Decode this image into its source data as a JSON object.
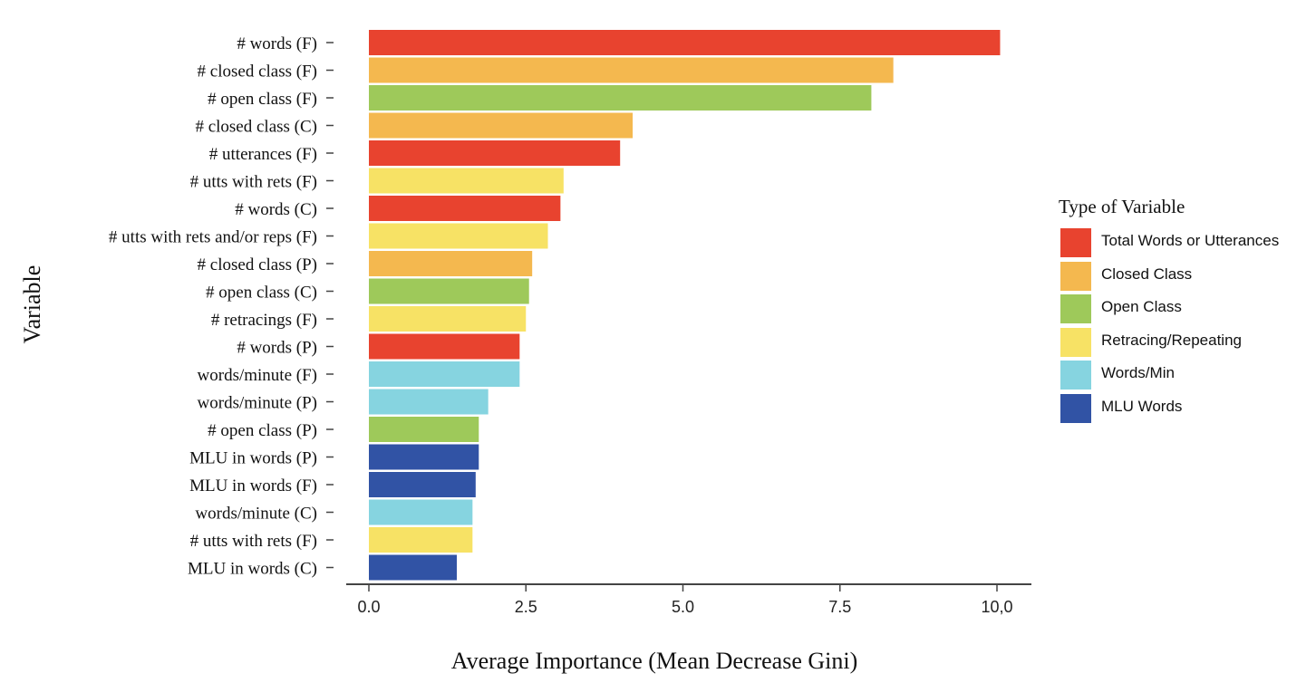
{
  "chart_data": {
    "type": "bar",
    "orientation": "horizontal",
    "xlabel": "Average Importance (Mean Decrease Gini)",
    "ylabel": "Variable",
    "xlim": [
      -0.2,
      10.3
    ],
    "xticks": [
      0.0,
      2.5,
      5.0,
      7.5,
      10.0
    ],
    "xtick_labels": [
      "0.0",
      "2.5",
      "5.0",
      "7.5",
      "10,0"
    ],
    "grid": false,
    "legend": {
      "title": "Type of Variable",
      "position": "right",
      "entries": [
        {
          "label": "Total Words or Utterances",
          "color": "#e8432f"
        },
        {
          "label": "Closed Class",
          "color": "#f4b84f"
        },
        {
          "label": "Open Class",
          "color": "#9ec95a"
        },
        {
          "label": "Retracing/Repeating",
          "color": "#f7e265"
        },
        {
          "label": "Words/Min",
          "color": "#86d4e0"
        },
        {
          "label": "MLU Words",
          "color": "#3153a5"
        }
      ]
    },
    "bars": [
      {
        "label": "# words (F)",
        "value": 10.05,
        "type": 0
      },
      {
        "label": "# closed class (F)",
        "value": 8.35,
        "type": 1
      },
      {
        "label": "# open class (F)",
        "value": 8.0,
        "type": 2
      },
      {
        "label": "# closed class (C)",
        "value": 4.2,
        "type": 1
      },
      {
        "label": "# utterances (F)",
        "value": 4.0,
        "type": 0
      },
      {
        "label": "# utts with rets (F)",
        "value": 3.1,
        "type": 3
      },
      {
        "label": "# words (C)",
        "value": 3.05,
        "type": 0
      },
      {
        "label": "# utts with rets and/or reps (F)",
        "value": 2.85,
        "type": 3
      },
      {
        "label": "# closed class (P)",
        "value": 2.6,
        "type": 1
      },
      {
        "label": "# open class (C)",
        "value": 2.55,
        "type": 2
      },
      {
        "label": "# retracings (F)",
        "value": 2.5,
        "type": 3
      },
      {
        "label": "# words (P)",
        "value": 2.4,
        "type": 0
      },
      {
        "label": "words/minute (F)",
        "value": 2.4,
        "type": 4
      },
      {
        "label": "words/minute (P)",
        "value": 1.9,
        "type": 4
      },
      {
        "label": "# open class (P)",
        "value": 1.75,
        "type": 2
      },
      {
        "label": "MLU in words (P)",
        "value": 1.75,
        "type": 5
      },
      {
        "label": "MLU in words (F)",
        "value": 1.7,
        "type": 5
      },
      {
        "label": "words/minute (C)",
        "value": 1.65,
        "type": 4
      },
      {
        "label": "# utts with rets (F)",
        "value": 1.65,
        "type": 3
      },
      {
        "label": "MLU in words (C)",
        "value": 1.4,
        "type": 5
      }
    ]
  }
}
